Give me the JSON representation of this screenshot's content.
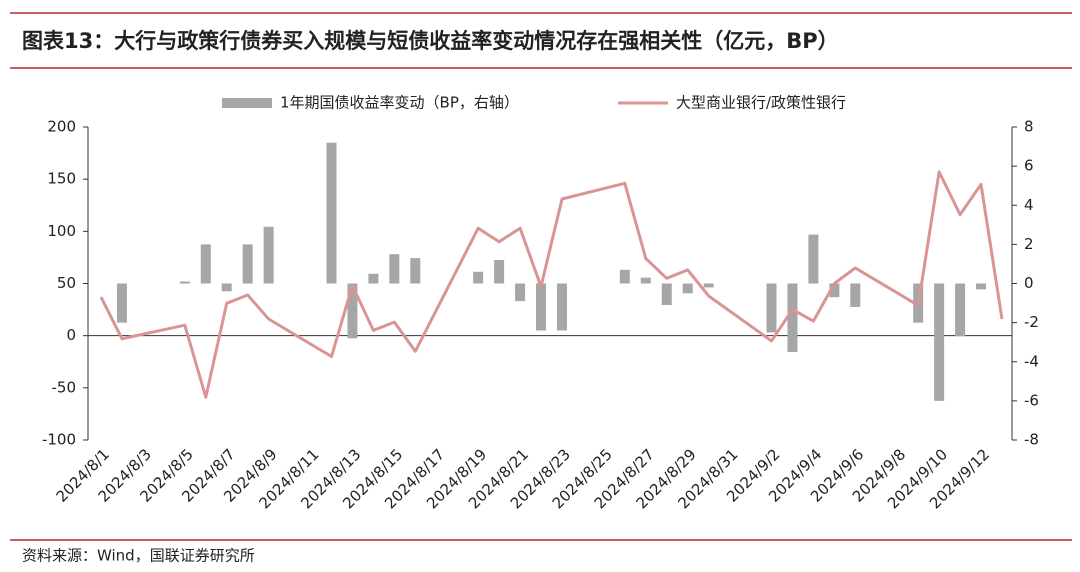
{
  "chart_data": {
    "type": "combo",
    "title": "图表13：大行与政策行债券买入规模与短债收益率变动情况存在强相关性（亿元，BP）",
    "source": "资料来源：Wind，国联证券研究所",
    "x": [
      "2024/8/1",
      "2024/8/2",
      "2024/8/5",
      "2024/8/6",
      "2024/8/7",
      "2024/8/8",
      "2024/8/9",
      "2024/8/12",
      "2024/8/13",
      "2024/8/14",
      "2024/8/15",
      "2024/8/16",
      "2024/8/19",
      "2024/8/20",
      "2024/8/21",
      "2024/8/22",
      "2024/8/23",
      "2024/8/26",
      "2024/8/27",
      "2024/8/28",
      "2024/8/29",
      "2024/8/30",
      "2024/9/2",
      "2024/9/3",
      "2024/9/4",
      "2024/9/5",
      "2024/9/6",
      "2024/9/9",
      "2024/9/10",
      "2024/9/11",
      "2024/9/12",
      "2024/9/13"
    ],
    "xticks": [
      "2024/8/1",
      "2024/8/3",
      "2024/8/5",
      "2024/8/7",
      "2024/8/9",
      "2024/8/11",
      "2024/8/13",
      "2024/8/15",
      "2024/8/17",
      "2024/8/19",
      "2024/8/21",
      "2024/8/23",
      "2024/8/25",
      "2024/8/27",
      "2024/8/29",
      "2024/8/31",
      "2024/9/2",
      "2024/9/4",
      "2024/9/6",
      "2024/9/8",
      "2024/9/10",
      "2024/9/12"
    ],
    "series": [
      {
        "name": "1年期国债收益率变动（BP，右轴）",
        "type": "bar",
        "axis": "y2",
        "color": "#a6a6a6",
        "values": [
          null,
          -2,
          0.1,
          2,
          -0.4,
          2,
          2.9,
          7.2,
          -2.8,
          0.5,
          1.5,
          1.3,
          0.6,
          1.2,
          -0.9,
          -2.4,
          -2.4,
          0.7,
          0.3,
          -1.1,
          -0.5,
          -0.2,
          -2.5,
          -3.5,
          2.5,
          -0.7,
          -1.2,
          -2,
          -6,
          -2.7,
          -0.3,
          null
        ]
      },
      {
        "name": "大型商业银行/政策性银行",
        "type": "line",
        "color": "#d99594",
        "values": [
          37,
          -3,
          10,
          -59,
          31,
          39,
          16,
          -20,
          48,
          5,
          13,
          -15,
          103,
          90,
          103,
          47,
          131,
          146,
          74,
          55,
          63,
          38,
          -5,
          25,
          14,
          50,
          65,
          29,
          157,
          116,
          145,
          16
        ]
      }
    ],
    "ylim": [
      -100,
      200
    ],
    "yticks": [
      -100,
      -50,
      0,
      50,
      100,
      150,
      200
    ],
    "y2lim": [
      -8,
      8
    ],
    "y2ticks": [
      -8,
      -6,
      -4,
      -2,
      0,
      2,
      4,
      6,
      8
    ],
    "grid": false
  }
}
